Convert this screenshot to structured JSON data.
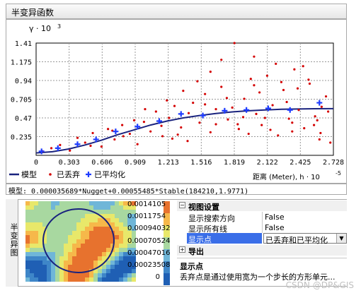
{
  "window": {
    "title": "半变异函数"
  },
  "chart_data": {
    "type": "scatter",
    "ylabel": "γ · 10",
    "ylabel_exp": "3",
    "xlabel": "距离 (Meter), h · 10",
    "xlabel_exp": "-5",
    "xlim": [
      0,
      2.728
    ],
    "ylim": [
      0,
      1.41
    ],
    "x_ticks": [
      "0",
      "0.303",
      "0.606",
      "0.909",
      "1.213",
      "1.516",
      "1.819",
      "2.122",
      "2.425",
      "2.728"
    ],
    "y_ticks": [
      "0.235",
      "0.47",
      "0.705",
      "0.94",
      "1.175",
      "1.41"
    ],
    "series": [
      {
        "name": "模型",
        "type": "line",
        "x": [
          0,
          0.15,
          0.3,
          0.45,
          0.6,
          0.75,
          0.9,
          1.05,
          1.2,
          1.35,
          1.5,
          1.65,
          1.8,
          1.95,
          2.1,
          2.25,
          2.4,
          2.55,
          2.728
        ],
        "y": [
          0.03,
          0.045,
          0.08,
          0.13,
          0.19,
          0.26,
          0.32,
          0.38,
          0.43,
          0.47,
          0.5,
          0.525,
          0.545,
          0.56,
          0.57,
          0.578,
          0.582,
          0.585,
          0.586
        ]
      },
      {
        "name": "已丢弃",
        "type": "scatter",
        "x": [
          0.06,
          0.14,
          0.22,
          0.31,
          0.38,
          0.45,
          0.52,
          0.6,
          0.66,
          0.72,
          0.79,
          0.86,
          0.93,
          0.99,
          1.05,
          1.1,
          1.16,
          1.22,
          1.27,
          1.33,
          1.39,
          1.44,
          1.5,
          1.55,
          1.6,
          1.65,
          1.7,
          1.76,
          1.82,
          1.86,
          1.91,
          1.97,
          2.02,
          2.07,
          2.12,
          2.17,
          2.22,
          2.27,
          2.32,
          2.37,
          2.41,
          2.46,
          2.51,
          2.56,
          2.61,
          2.66,
          0.5,
          0.9,
          1.2,
          1.48,
          1.7,
          1.9,
          2.05,
          2.2,
          2.35,
          2.5,
          2.62,
          1.0,
          1.3,
          1.6,
          1.85,
          2.0,
          2.15,
          2.3,
          2.45,
          2.58,
          0.7,
          1.4,
          1.75,
          2.25,
          2.55,
          1.15,
          1.55,
          1.95,
          2.4,
          2.68,
          0.8,
          1.35,
          1.8,
          2.1,
          2.6,
          1.25,
          1.65,
          2.0,
          2.35,
          2.7
        ],
        "y": [
          0.05,
          0.09,
          0.13,
          0.06,
          0.22,
          0.16,
          0.28,
          0.11,
          0.33,
          0.2,
          0.38,
          0.27,
          0.14,
          0.42,
          0.3,
          0.55,
          0.24,
          0.47,
          0.62,
          0.35,
          0.18,
          0.66,
          0.41,
          0.77,
          0.29,
          0.58,
          0.86,
          0.45,
          1.41,
          0.33,
          0.71,
          0.96,
          0.52,
          0.38,
          1.0,
          0.63,
          0.25,
          0.82,
          0.46,
          1.08,
          0.57,
          0.34,
          0.9,
          0.49,
          0.28,
          0.74,
          0.12,
          0.44,
          0.69,
          0.93,
          1.2,
          0.48,
          0.79,
          1.15,
          0.41,
          0.95,
          0.61,
          0.58,
          0.26,
          1.05,
          0.39,
          0.88,
          0.32,
          0.67,
          1.12,
          0.44,
          0.31,
          0.53,
          0.72,
          0.92,
          0.38,
          0.37,
          0.64,
          0.27,
          0.84,
          0.55,
          0.24,
          0.81,
          0.6,
          0.47,
          0.2,
          0.21,
          0.39,
          1.24,
          0.3,
          0.16
        ]
      },
      {
        "name": "已平均化",
        "type": "scatter",
        "x": [
          0.05,
          0.2,
          0.38,
          0.55,
          0.73,
          0.93,
          1.13,
          1.33,
          1.53,
          1.73,
          1.93,
          2.13,
          2.33,
          2.6
        ],
        "y": [
          0.05,
          0.09,
          0.14,
          0.2,
          0.3,
          0.36,
          0.43,
          0.52,
          0.5,
          0.56,
          0.57,
          0.59,
          0.57,
          0.66
        ]
      }
    ]
  },
  "legend": {
    "model": "模型",
    "discarded": "已丢弃",
    "averaged": "已平均化"
  },
  "model_text": "模型: 0.000035689*Nugget+0.00055485*Stable(184210,1.9771)",
  "side_tab": "半变异图",
  "colorbar_labels": [
    "0.0014105",
    "0.0011754",
    "0.00094032",
    "0.00070524",
    "0.00047016",
    "0.00023508",
    "0"
  ],
  "properties": {
    "section1": "视图设置",
    "rows": [
      {
        "k": "显示搜索方向",
        "v": "False"
      },
      {
        "k": "显示所有线",
        "v": "False"
      },
      {
        "k": "显示点",
        "v": "已丢弃和已平均化"
      }
    ],
    "section2": "导出",
    "desc_title": "显示点",
    "desc_text": "丢弃点是通过使用宽为一个步长的方形单元..."
  },
  "watermark": "CSDN @DP&GIS",
  "colors": {
    "model": "#1a237e",
    "discarded": "#d40000",
    "averaged": "#1e3cff",
    "selected": "#3a6ee8"
  }
}
